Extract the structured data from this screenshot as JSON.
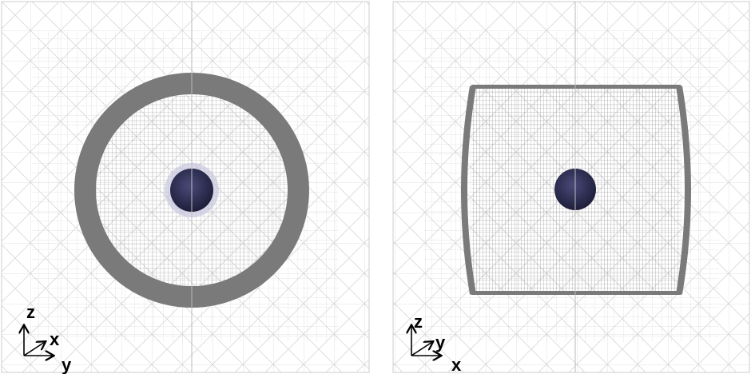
{
  "panels": [
    {
      "axes": {
        "vertical": "z",
        "diagonal": "x",
        "horizontal": "y"
      }
    },
    {
      "axes": {
        "vertical": "z",
        "diagonal": "y",
        "horizontal": "x"
      }
    }
  ]
}
